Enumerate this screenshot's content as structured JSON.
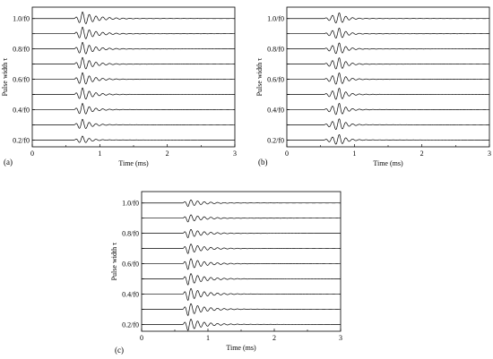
{
  "chart_data": [
    {
      "type": "line",
      "panel_label": "(a)",
      "xlabel": "Time (ms)",
      "ylabel": "Pulse width τ",
      "xlim": [
        0,
        3
      ],
      "x_ticks": [
        "0",
        "1",
        "2",
        "3"
      ],
      "y_tick_labels": [
        "1.0/f0",
        "0.8/f0",
        "0.6/f0",
        "0.4/f0",
        "0.2/f0"
      ],
      "series": [
        {
          "pulse_width_f0": 1.0,
          "onset_ms": 0.62,
          "peak_ms": 0.74,
          "amplitude": 1.0,
          "decay_ms": 0.55
        },
        {
          "pulse_width_f0": 0.9,
          "onset_ms": 0.62,
          "peak_ms": 0.74,
          "amplitude": 1.0,
          "decay_ms": 0.5
        },
        {
          "pulse_width_f0": 0.8,
          "onset_ms": 0.62,
          "peak_ms": 0.74,
          "amplitude": 1.0,
          "decay_ms": 0.45
        },
        {
          "pulse_width_f0": 0.7,
          "onset_ms": 0.62,
          "peak_ms": 0.74,
          "amplitude": 1.0,
          "decay_ms": 0.42
        },
        {
          "pulse_width_f0": 0.6,
          "onset_ms": 0.62,
          "peak_ms": 0.74,
          "amplitude": 1.0,
          "decay_ms": 0.4
        },
        {
          "pulse_width_f0": 0.5,
          "onset_ms": 0.62,
          "peak_ms": 0.74,
          "amplitude": 1.0,
          "decay_ms": 0.38
        },
        {
          "pulse_width_f0": 0.4,
          "onset_ms": 0.62,
          "peak_ms": 0.74,
          "amplitude": 0.95,
          "decay_ms": 0.35
        },
        {
          "pulse_width_f0": 0.3,
          "onset_ms": 0.62,
          "peak_ms": 0.74,
          "amplitude": 0.85,
          "decay_ms": 0.32
        },
        {
          "pulse_width_f0": 0.2,
          "onset_ms": 0.62,
          "peak_ms": 0.74,
          "amplitude": 0.6,
          "decay_ms": 0.3
        }
      ]
    },
    {
      "type": "line",
      "panel_label": "(b)",
      "xlabel": "Time (ms)",
      "ylabel": "Pulse width τ",
      "xlim": [
        0,
        3
      ],
      "x_ticks": [
        "0",
        "1",
        "2",
        "3"
      ],
      "y_tick_labels": [
        "1.0/f0",
        "0.8/f0",
        "0.6/f0",
        "0.4/f0",
        "0.2/f0"
      ],
      "series": [
        {
          "pulse_width_f0": 1.0,
          "onset_ms": 0.55,
          "peak_ms": 0.78,
          "amplitude": 0.9,
          "decay_ms": 0.25
        },
        {
          "pulse_width_f0": 0.9,
          "onset_ms": 0.55,
          "peak_ms": 0.78,
          "amplitude": 0.9,
          "decay_ms": 0.25
        },
        {
          "pulse_width_f0": 0.8,
          "onset_ms": 0.55,
          "peak_ms": 0.78,
          "amplitude": 0.95,
          "decay_ms": 0.25
        },
        {
          "pulse_width_f0": 0.7,
          "onset_ms": 0.55,
          "peak_ms": 0.78,
          "amplitude": 1.0,
          "decay_ms": 0.25
        },
        {
          "pulse_width_f0": 0.6,
          "onset_ms": 0.55,
          "peak_ms": 0.78,
          "amplitude": 1.0,
          "decay_ms": 0.25
        },
        {
          "pulse_width_f0": 0.5,
          "onset_ms": 0.55,
          "peak_ms": 0.78,
          "amplitude": 1.0,
          "decay_ms": 0.25
        },
        {
          "pulse_width_f0": 0.4,
          "onset_ms": 0.55,
          "peak_ms": 0.78,
          "amplitude": 1.0,
          "decay_ms": 0.25
        },
        {
          "pulse_width_f0": 0.3,
          "onset_ms": 0.55,
          "peak_ms": 0.78,
          "amplitude": 0.95,
          "decay_ms": 0.25
        },
        {
          "pulse_width_f0": 0.2,
          "onset_ms": 0.55,
          "peak_ms": 0.78,
          "amplitude": 0.85,
          "decay_ms": 0.25
        }
      ]
    },
    {
      "type": "line",
      "panel_label": "(c)",
      "xlabel": "Time (ms)",
      "ylabel": "Pulse width τ",
      "xlim": [
        0,
        3
      ],
      "x_ticks": [
        "0",
        "1",
        "2",
        "3"
      ],
      "y_tick_labels": [
        "1.0/f0",
        "0.8/f0",
        "0.6/f0",
        "0.4/f0",
        "0.2/f0"
      ],
      "series": [
        {
          "pulse_width_f0": 1.0,
          "onset_ms": 0.62,
          "peak_ms": 0.7,
          "amplitude": 0.55,
          "decay_ms": 0.6
        },
        {
          "pulse_width_f0": 0.9,
          "onset_ms": 0.62,
          "peak_ms": 0.7,
          "amplitude": 0.6,
          "decay_ms": 0.6
        },
        {
          "pulse_width_f0": 0.8,
          "onset_ms": 0.62,
          "peak_ms": 0.7,
          "amplitude": 0.7,
          "decay_ms": 0.6
        },
        {
          "pulse_width_f0": 0.7,
          "onset_ms": 0.62,
          "peak_ms": 0.7,
          "amplitude": 0.8,
          "decay_ms": 0.6
        },
        {
          "pulse_width_f0": 0.6,
          "onset_ms": 0.62,
          "peak_ms": 0.7,
          "amplitude": 0.9,
          "decay_ms": 0.6
        },
        {
          "pulse_width_f0": 0.5,
          "onset_ms": 0.62,
          "peak_ms": 0.7,
          "amplitude": 0.95,
          "decay_ms": 0.6
        },
        {
          "pulse_width_f0": 0.4,
          "onset_ms": 0.62,
          "peak_ms": 0.7,
          "amplitude": 1.0,
          "decay_ms": 0.6
        },
        {
          "pulse_width_f0": 0.3,
          "onset_ms": 0.62,
          "peak_ms": 0.7,
          "amplitude": 1.0,
          "decay_ms": 0.6
        },
        {
          "pulse_width_f0": 0.2,
          "onset_ms": 0.62,
          "peak_ms": 0.7,
          "amplitude": 0.95,
          "decay_ms": 0.6
        }
      ]
    }
  ]
}
